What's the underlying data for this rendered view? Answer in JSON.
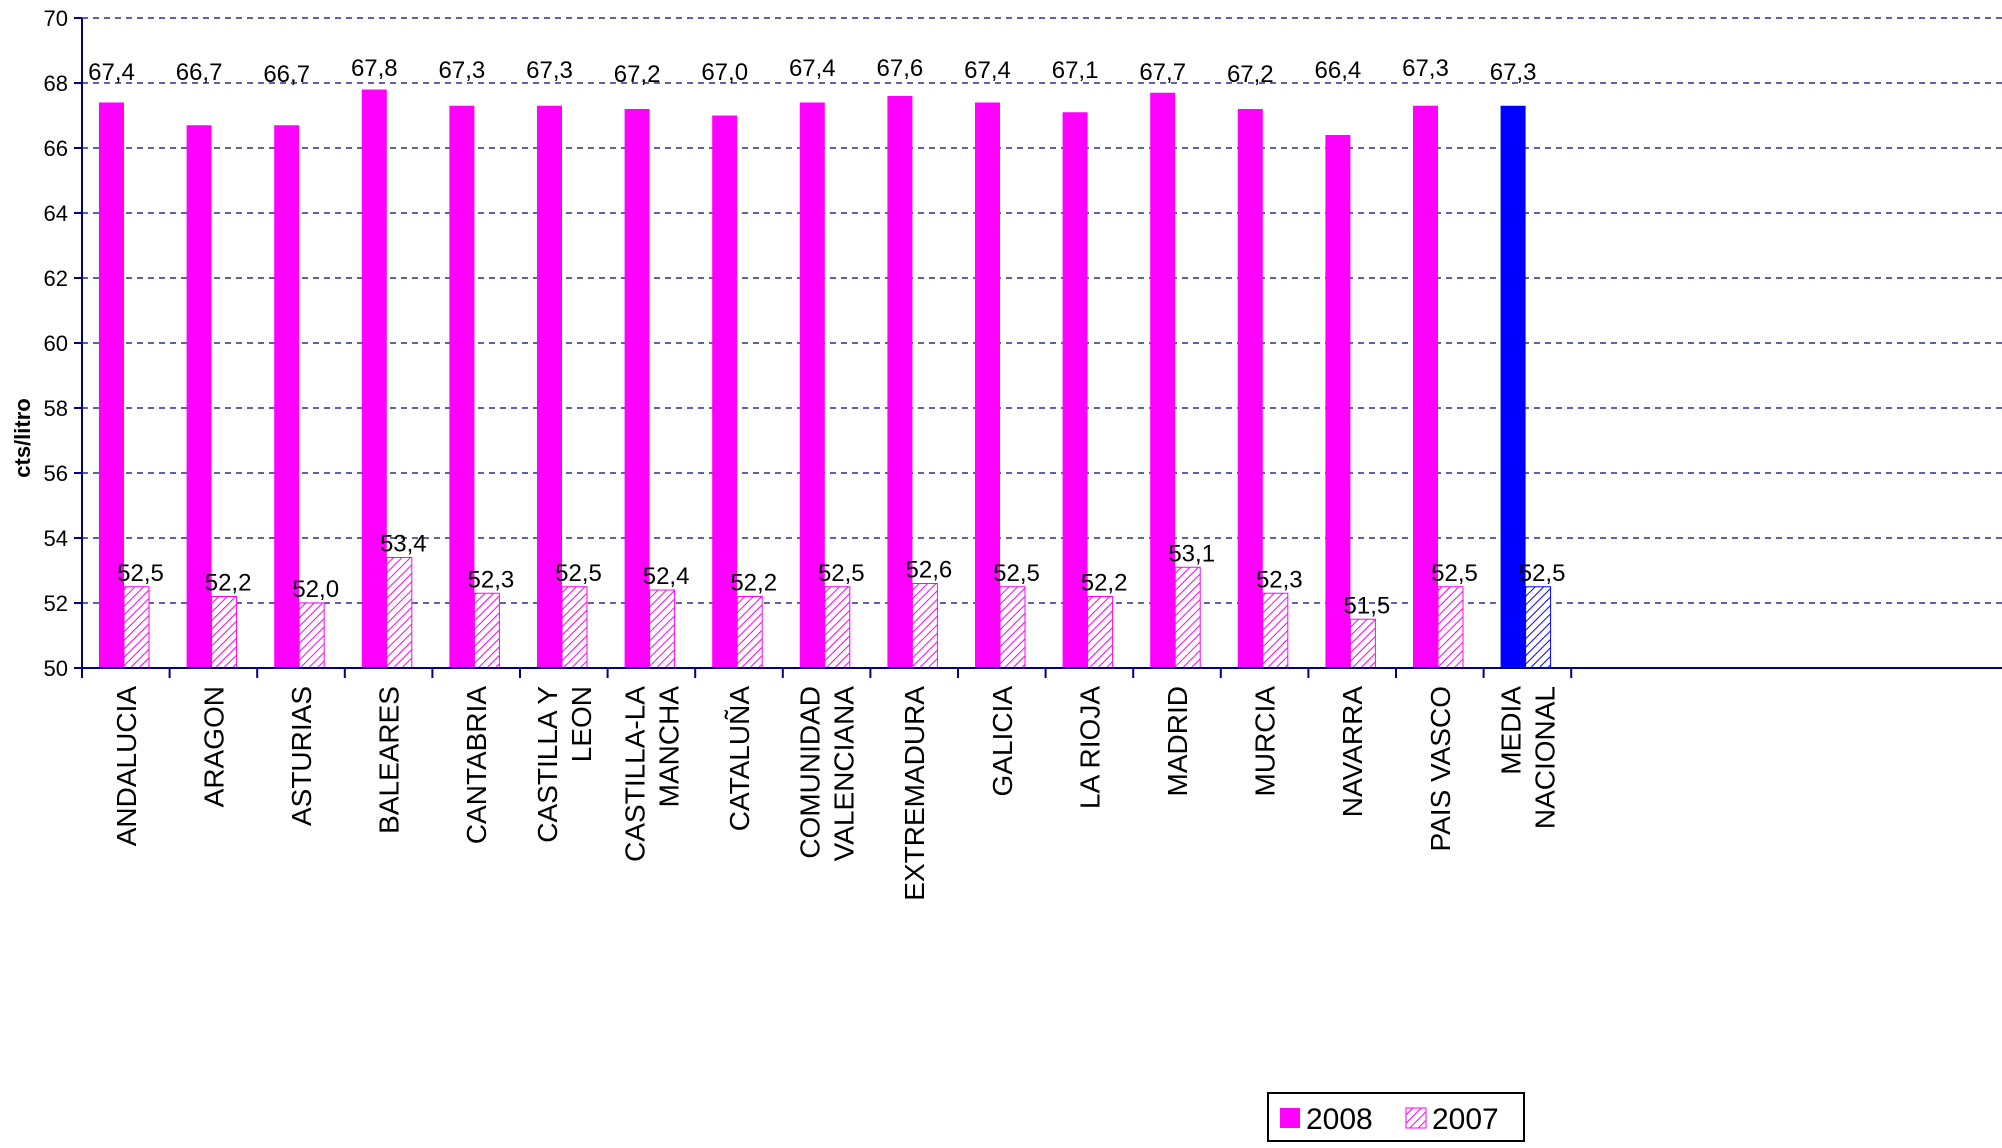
{
  "chart_data": {
    "type": "bar",
    "title": "",
    "xlabel": "",
    "ylabel": "cts/litro",
    "ylim": [
      50,
      70
    ],
    "y_ticks": [
      "50",
      "52",
      "54",
      "56",
      "58",
      "60",
      "62",
      "64",
      "66",
      "68",
      "70"
    ],
    "grid": "horizontal dashed",
    "legend_position": "bottom-center",
    "categories": [
      [
        "ANDALUCIA"
      ],
      [
        "ARAGON"
      ],
      [
        "ASTURIAS"
      ],
      [
        "BALEARES"
      ],
      [
        "CANTABRIA"
      ],
      [
        "CASTILLA Y",
        "LEON"
      ],
      [
        "CASTILLA-LA",
        "MANCHA"
      ],
      [
        "CATALUÑA"
      ],
      [
        "COMUNIDAD",
        "VALENCIANA"
      ],
      [
        "EXTREMADURA"
      ],
      [
        "GALICIA"
      ],
      [
        "LA RIOJA"
      ],
      [
        "MADRID"
      ],
      [
        "MURCIA"
      ],
      [
        "NAVARRA"
      ],
      [
        "PAIS VASCO"
      ],
      [
        "MEDIA",
        "NACIONAL"
      ]
    ],
    "series": [
      {
        "name": "2008",
        "color": "#ff00ff",
        "highlight_color": "#0000ff",
        "pattern": "solid",
        "values": [
          67.4,
          66.7,
          66.7,
          67.8,
          67.3,
          67.3,
          67.2,
          67.0,
          67.4,
          67.6,
          67.4,
          67.1,
          67.7,
          67.2,
          66.4,
          67.3,
          67.3
        ],
        "labels": [
          "67,4",
          "66,7",
          "66,7",
          "67,8",
          "67,3",
          "67,3",
          "67,2",
          "67,0",
          "67,4",
          "67,6",
          "67,4",
          "67,1",
          "67,7",
          "67,2",
          "66,4",
          "67,3",
          "67,3"
        ]
      },
      {
        "name": "2007",
        "color": "#ff00ff",
        "highlight_color": "#0000ff",
        "pattern": "hatched",
        "values": [
          52.5,
          52.2,
          52.0,
          53.4,
          52.3,
          52.5,
          52.4,
          52.2,
          52.5,
          52.6,
          52.5,
          52.2,
          53.1,
          52.3,
          51.5,
          52.5,
          52.5
        ],
        "labels": [
          "52,5",
          "52,2",
          "52,0",
          "53,4",
          "52,3",
          "52,5",
          "52,4",
          "52,2",
          "52,5",
          "52,6",
          "52,5",
          "52,2",
          "53,1",
          "52,3",
          "51,5",
          "52,5",
          "52,5"
        ]
      }
    ],
    "highlight_category_index": 16,
    "axis_color": "#000080",
    "grid_color": "#000080"
  }
}
